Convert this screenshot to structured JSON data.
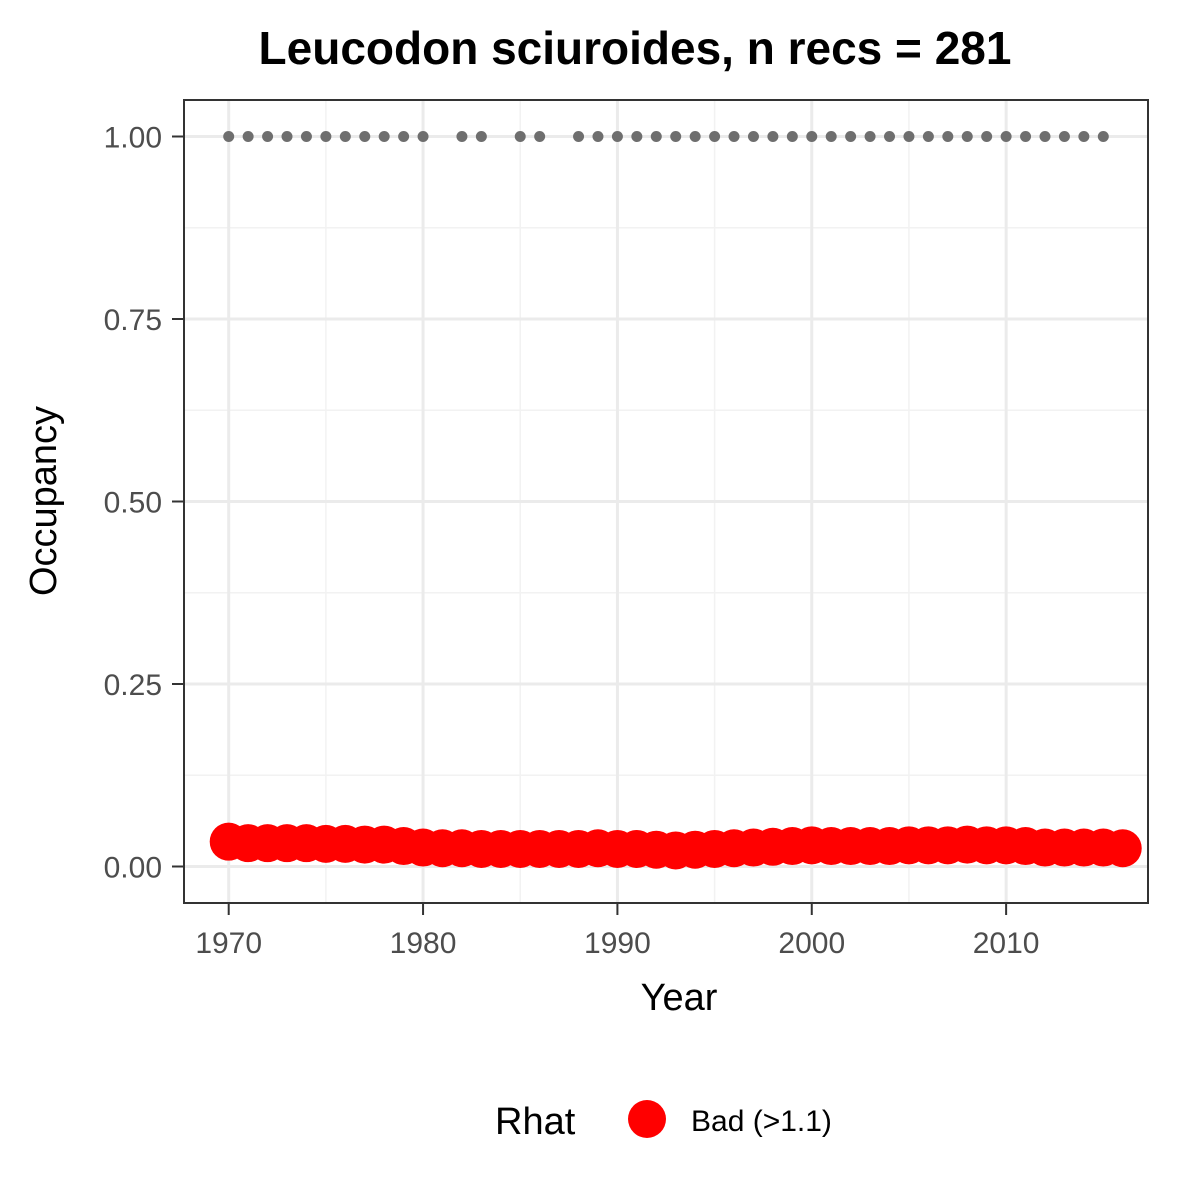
{
  "chart_data": {
    "type": "scatter",
    "title": "Leucodon sciuroides, n recs = 281",
    "xlabel": "Year",
    "ylabel": "Occupancy",
    "xlim": [
      1967.7,
      2017.3
    ],
    "ylim": [
      -0.05,
      1.05
    ],
    "x_ticks": [
      1970,
      1980,
      1990,
      2000,
      2010
    ],
    "x_tick_labels": [
      "1970",
      "1980",
      "1990",
      "2000",
      "2010"
    ],
    "y_ticks": [
      0,
      0.25,
      0.5,
      0.75,
      1
    ],
    "y_tick_labels": [
      "0.00",
      "0.25",
      "0.50",
      "0.75",
      "1.00"
    ],
    "grid": true,
    "legend": {
      "title": "Rhat",
      "position": "bottom",
      "entries": [
        "Bad (>1.1)"
      ]
    },
    "series": [
      {
        "name": "Bad (>1.1)",
        "color": "#ff0000",
        "marker": "circle",
        "x": [
          1970,
          1971,
          1972,
          1973,
          1974,
          1975,
          1976,
          1977,
          1978,
          1979,
          1980,
          1981,
          1982,
          1983,
          1984,
          1985,
          1986,
          1987,
          1988,
          1989,
          1990,
          1991,
          1992,
          1993,
          1994,
          1995,
          1996,
          1997,
          1998,
          1999,
          2000,
          2001,
          2002,
          2003,
          2004,
          2005,
          2006,
          2007,
          2008,
          2009,
          2010,
          2011,
          2012,
          2013,
          2014,
          2015,
          2016
        ],
        "y": [
          0.034,
          0.032,
          0.032,
          0.032,
          0.032,
          0.031,
          0.031,
          0.03,
          0.03,
          0.028,
          0.026,
          0.025,
          0.025,
          0.024,
          0.024,
          0.024,
          0.024,
          0.024,
          0.024,
          0.025,
          0.024,
          0.024,
          0.023,
          0.022,
          0.023,
          0.024,
          0.025,
          0.026,
          0.027,
          0.028,
          0.029,
          0.028,
          0.028,
          0.028,
          0.028,
          0.029,
          0.029,
          0.029,
          0.03,
          0.029,
          0.029,
          0.028,
          0.026,
          0.026,
          0.026,
          0.026,
          0.025
        ]
      }
    ],
    "record_points": {
      "color": "#6e6e6e",
      "marker": "circle",
      "y": 1,
      "x": [
        1970,
        1971,
        1972,
        1973,
        1974,
        1975,
        1976,
        1977,
        1978,
        1979,
        1980,
        1982,
        1983,
        1985,
        1986,
        1988,
        1989,
        1990,
        1991,
        1992,
        1993,
        1994,
        1995,
        1996,
        1997,
        1998,
        1999,
        2000,
        2001,
        2002,
        2003,
        2004,
        2005,
        2006,
        2007,
        2008,
        2009,
        2010,
        2011,
        2012,
        2013,
        2014,
        2015
      ]
    }
  }
}
